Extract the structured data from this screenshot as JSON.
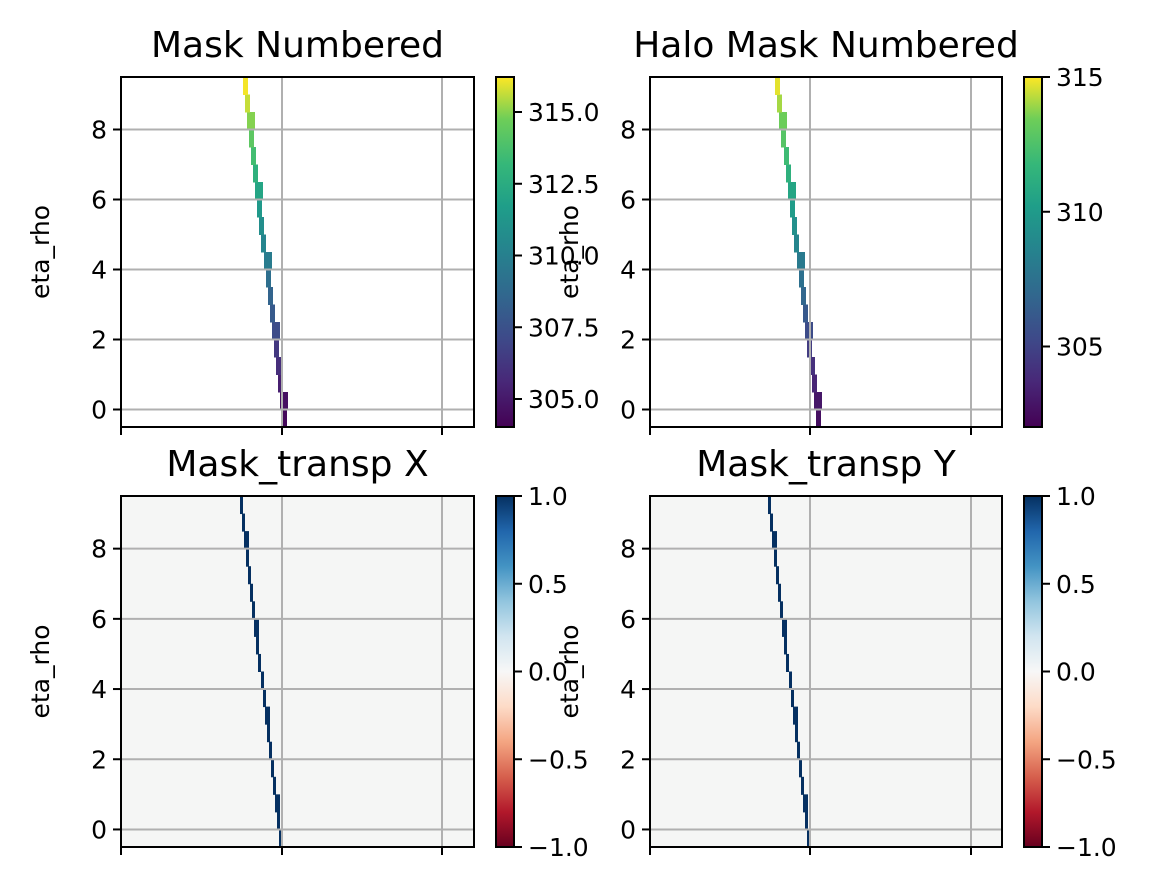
{
  "chart_data": [
    {
      "type": "heatmap",
      "title": "Mask Numbered",
      "ylabel": "eta_rho",
      "ylim": [
        -0.5,
        9.5
      ],
      "yticks": [
        "0",
        "2",
        "4",
        "6",
        "8"
      ],
      "grid": true,
      "colormap": "viridis",
      "colorbar": {
        "range": [
          304.0,
          316.3
        ],
        "ticks": [
          "305.0",
          "307.5",
          "310.0",
          "312.5",
          "315.0"
        ]
      },
      "cells": [
        {
          "eta": 0,
          "value": 304.3
        },
        {
          "eta": 0.5,
          "value": 304.6
        },
        {
          "eta": 1,
          "value": 305.2
        },
        {
          "eta": 1.5,
          "value": 305.8
        },
        {
          "eta": 2,
          "value": 306.3
        },
        {
          "eta": 2.5,
          "value": 307.2
        },
        {
          "eta": 3,
          "value": 307.9
        },
        {
          "eta": 3.5,
          "value": 308.4
        },
        {
          "eta": 4,
          "value": 309.0
        },
        {
          "eta": 4.5,
          "value": 309.8
        },
        {
          "eta": 5,
          "value": 310.3
        },
        {
          "eta": 5.5,
          "value": 310.8
        },
        {
          "eta": 6,
          "value": 311.4
        },
        {
          "eta": 6.5,
          "value": 312.1
        },
        {
          "eta": 7,
          "value": 312.8
        },
        {
          "eta": 7.5,
          "value": 313.6
        },
        {
          "eta": 8,
          "value": 314.3
        },
        {
          "eta": 8.5,
          "value": 315.0
        },
        {
          "eta": 9,
          "value": 315.7
        },
        {
          "eta": 9.5,
          "value": 316.2
        }
      ]
    },
    {
      "type": "heatmap",
      "title": "Halo Mask Numbered",
      "ylabel": "eta_rho",
      "ylim": [
        -0.5,
        9.5
      ],
      "yticks": [
        "0",
        "2",
        "4",
        "6",
        "8"
      ],
      "grid": true,
      "colormap": "viridis",
      "colorbar": {
        "range": [
          302.0,
          315.0
        ],
        "ticks": [
          "305",
          "310",
          "315"
        ]
      },
      "cells": [
        {
          "eta": 0,
          "value": 302.6
        },
        {
          "eta": 0.5,
          "value": 302.9
        },
        {
          "eta": 1,
          "value": 303.5
        },
        {
          "eta": 1.5,
          "value": 304.0
        },
        {
          "eta": 2,
          "value": 304.6
        },
        {
          "eta": 2.5,
          "value": 305.4
        },
        {
          "eta": 3,
          "value": 306.1
        },
        {
          "eta": 3.5,
          "value": 306.8
        },
        {
          "eta": 4,
          "value": 307.4
        },
        {
          "eta": 4.5,
          "value": 308.0
        },
        {
          "eta": 5,
          "value": 308.7
        },
        {
          "eta": 5.5,
          "value": 309.3
        },
        {
          "eta": 6,
          "value": 310.0
        },
        {
          "eta": 6.5,
          "value": 310.6
        },
        {
          "eta": 7,
          "value": 311.3
        },
        {
          "eta": 7.5,
          "value": 312.0
        },
        {
          "eta": 8,
          "value": 312.7
        },
        {
          "eta": 8.5,
          "value": 313.3
        },
        {
          "eta": 9,
          "value": 314.0
        },
        {
          "eta": 9.5,
          "value": 314.7
        }
      ]
    },
    {
      "type": "heatmap",
      "title": "Mask_transp X",
      "ylabel": "eta_rho",
      "ylim": [
        -0.5,
        9.5
      ],
      "yticks": [
        "0",
        "2",
        "4",
        "6",
        "8"
      ],
      "grid": true,
      "colormap": "RdBu",
      "colorbar": {
        "range": [
          -1.0,
          1.0
        ],
        "ticks": [
          "−1.0",
          "−0.5",
          "0.0",
          "0.5",
          "1.0"
        ]
      },
      "background_value": 0.0,
      "cells_value": 1.0
    },
    {
      "type": "heatmap",
      "title": "Mask_transp Y",
      "ylabel": "eta_rho",
      "ylim": [
        -0.5,
        9.5
      ],
      "yticks": [
        "0",
        "2",
        "4",
        "6",
        "8"
      ],
      "grid": true,
      "colormap": "RdBu",
      "colorbar": {
        "range": [
          -1.0,
          1.0
        ],
        "ticks": [
          "−1.0",
          "−0.5",
          "0.0",
          "0.5",
          "1.0"
        ]
      },
      "background_value": 0.0,
      "cells_value": 1.0
    }
  ]
}
